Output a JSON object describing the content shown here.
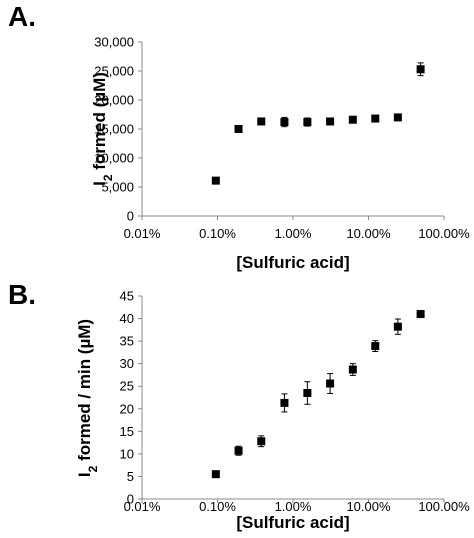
{
  "chart_data": [
    {
      "panel_label": "A.",
      "type": "scatter",
      "title": "",
      "xlabel": "[Sulfuric acid]",
      "ylabel_main": "I",
      "ylabel_sub": "2",
      "ylabel_rest": " formed (µM)",
      "x_scale": "log",
      "x_ticks": [
        {
          "value": 0.01,
          "label": "0.01%"
        },
        {
          "value": 0.1,
          "label": "0.10%"
        },
        {
          "value": 1,
          "label": "1.00%"
        },
        {
          "value": 10,
          "label": "10.00%"
        },
        {
          "value": 100,
          "label": "100.00%"
        }
      ],
      "xlim": [
        0.01,
        100
      ],
      "ylim": [
        0,
        30000
      ],
      "y_ticks": [
        {
          "value": 0,
          "label": "0"
        },
        {
          "value": 5000,
          "label": "5,000"
        },
        {
          "value": 10000,
          "label": "10,000"
        },
        {
          "value": 15000,
          "label": "15,000"
        },
        {
          "value": 20000,
          "label": "20,000"
        },
        {
          "value": 25000,
          "label": "25,000"
        },
        {
          "value": 30000,
          "label": "30,000"
        }
      ],
      "grid": false,
      "marker": "square",
      "marker_color": "#000000",
      "points": [
        {
          "x": 0.095,
          "y": 6100,
          "err": 0
        },
        {
          "x": 0.19,
          "y": 15000,
          "err": 500
        },
        {
          "x": 0.38,
          "y": 16300,
          "err": 300
        },
        {
          "x": 0.77,
          "y": 16200,
          "err": 800
        },
        {
          "x": 1.55,
          "y": 16200,
          "err": 700
        },
        {
          "x": 3.1,
          "y": 16300,
          "err": 300
        },
        {
          "x": 6.2,
          "y": 16600,
          "err": 300
        },
        {
          "x": 12.3,
          "y": 16800,
          "err": 300
        },
        {
          "x": 24.5,
          "y": 17000,
          "err": 300
        },
        {
          "x": 49,
          "y": 25300,
          "err": 1100
        }
      ]
    },
    {
      "panel_label": "B.",
      "type": "scatter",
      "title": "",
      "xlabel": "[Sulfuric acid]",
      "ylabel_main": "I",
      "ylabel_sub": "2",
      "ylabel_rest": " formed / min (µM)",
      "x_scale": "log",
      "x_ticks": [
        {
          "value": 0.01,
          "label": "0.01%"
        },
        {
          "value": 0.1,
          "label": "0.10%"
        },
        {
          "value": 1,
          "label": "1.00%"
        },
        {
          "value": 10,
          "label": "10.00%"
        },
        {
          "value": 100,
          "label": "100.00%"
        }
      ],
      "xlim": [
        0.01,
        100
      ],
      "ylim": [
        0,
        45
      ],
      "y_ticks": [
        {
          "value": 0,
          "label": "0"
        },
        {
          "value": 5,
          "label": "5"
        },
        {
          "value": 10,
          "label": "10"
        },
        {
          "value": 15,
          "label": "15"
        },
        {
          "value": 20,
          "label": "20"
        },
        {
          "value": 25,
          "label": "25"
        },
        {
          "value": 30,
          "label": "30"
        },
        {
          "value": 35,
          "label": "35"
        },
        {
          "value": 40,
          "label": "40"
        },
        {
          "value": 45,
          "label": "45"
        }
      ],
      "grid": false,
      "marker": "square",
      "marker_color": "#000000",
      "points": [
        {
          "x": 0.095,
          "y": 5.5,
          "err": 0.4
        },
        {
          "x": 0.19,
          "y": 10.7,
          "err": 1.0
        },
        {
          "x": 0.38,
          "y": 12.8,
          "err": 1.2
        },
        {
          "x": 0.77,
          "y": 21.3,
          "err": 2.0
        },
        {
          "x": 1.55,
          "y": 23.5,
          "err": 2.5
        },
        {
          "x": 3.1,
          "y": 25.6,
          "err": 2.2
        },
        {
          "x": 6.2,
          "y": 28.7,
          "err": 1.3
        },
        {
          "x": 12.3,
          "y": 33.9,
          "err": 1.2
        },
        {
          "x": 24.5,
          "y": 38.2,
          "err": 1.7
        },
        {
          "x": 49,
          "y": 41.0,
          "err": 0.6
        }
      ]
    }
  ]
}
